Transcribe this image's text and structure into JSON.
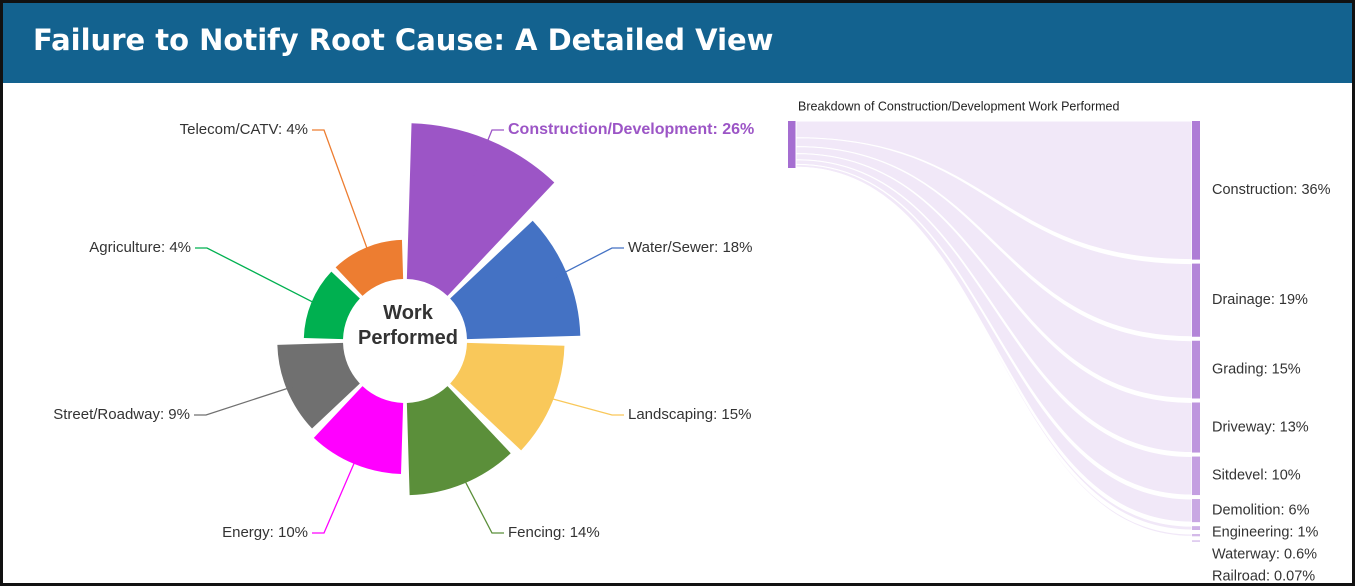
{
  "header": {
    "title": "Failure to Notify Root Cause: A Detailed View"
  },
  "chart_data": [
    {
      "type": "rose",
      "center_label": "Work Performed",
      "labels": [
        "Construction/Development: 26%",
        "Water/Sewer: 18%",
        "Landscaping: 15%",
        "Fencing: 14%",
        "Energy: 10%",
        "Street/Roadway: 9%",
        "Agriculture: 4%",
        "Telecom/CATV: 4%"
      ],
      "values": [
        26,
        18,
        15,
        14,
        10,
        9,
        4,
        4
      ],
      "colors": [
        "#9c55c6",
        "#4472c4",
        "#f9c85a",
        "#5b8f3a",
        "#ff00ff",
        "#707070",
        "#00b050",
        "#ed7d31"
      ],
      "highlight": 0
    },
    {
      "type": "sankey",
      "title": "Breakdown of Construction/Development Work Performed",
      "color": "#a56ed1",
      "labels": [
        "Construction: 36%",
        "Drainage: 19%",
        "Grading: 15%",
        "Driveway: 13%",
        "Sitdevel: 10%",
        "Demolition: 6%",
        "Engineering: 1%",
        "Waterway: 0.6%",
        "Railroad: 0.07%"
      ],
      "values": [
        36,
        19,
        15,
        13,
        10,
        6,
        1,
        0.6,
        0.07
      ]
    }
  ]
}
